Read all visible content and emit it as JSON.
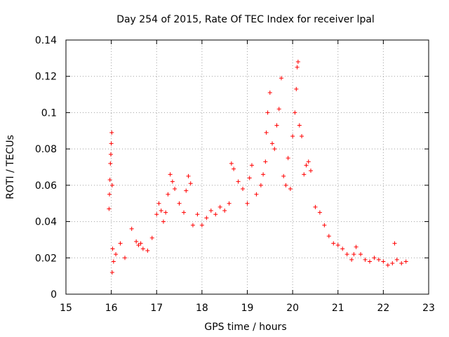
{
  "chart_data": {
    "type": "scatter",
    "title": "Day 254 of 2015, Rate Of TEC Index for receiver lpal",
    "xlabel": "GPS time / hours",
    "ylabel": "ROTI / TECUs",
    "xlim": [
      15,
      23
    ],
    "ylim": [
      0,
      0.14
    ],
    "xticks": [
      15,
      16,
      17,
      18,
      19,
      20,
      21,
      22,
      23
    ],
    "xtick_labels": [
      "15",
      "16",
      "17",
      "18",
      "19",
      "20",
      "21",
      "22",
      "23"
    ],
    "yticks": [
      0,
      0.02,
      0.04,
      0.06,
      0.08,
      0.1,
      0.12,
      0.14
    ],
    "ytick_labels": [
      "0",
      "0.02",
      "0.04",
      "0.06",
      "0.08",
      "0.1",
      "0.12",
      "0.14"
    ],
    "grid": true,
    "marker": "+",
    "color": "#ff0000",
    "series": [
      {
        "name": "ROTI",
        "x": [
          15.95,
          15.96,
          15.97,
          15.98,
          15.99,
          16.0,
          16.01,
          16.02,
          16.03,
          16.02,
          16.05,
          16.1,
          16.2,
          16.3,
          16.45,
          16.55,
          16.6,
          16.65,
          16.7,
          16.8,
          16.9,
          17.0,
          17.05,
          17.1,
          17.15,
          17.2,
          17.25,
          17.3,
          17.35,
          17.4,
          17.5,
          17.6,
          17.65,
          17.7,
          17.75,
          17.8,
          17.9,
          18.0,
          18.1,
          18.2,
          18.3,
          18.4,
          18.5,
          18.6,
          18.65,
          18.7,
          18.8,
          18.9,
          19.0,
          19.05,
          19.1,
          19.2,
          19.3,
          19.35,
          19.4,
          19.42,
          19.45,
          19.5,
          19.55,
          19.6,
          19.65,
          19.7,
          19.75,
          19.8,
          19.85,
          19.9,
          19.95,
          20.0,
          20.05,
          20.08,
          20.1,
          20.12,
          20.15,
          20.2,
          20.25,
          20.3,
          20.35,
          20.4,
          20.5,
          20.6,
          20.7,
          20.8,
          20.9,
          21.0,
          21.1,
          21.2,
          21.3,
          21.35,
          21.4,
          21.5,
          21.6,
          21.7,
          21.8,
          21.9,
          22.0,
          22.1,
          22.2,
          22.25,
          22.3,
          22.4,
          22.5
        ],
        "y": [
          0.047,
          0.055,
          0.063,
          0.072,
          0.077,
          0.083,
          0.089,
          0.06,
          0.025,
          0.012,
          0.018,
          0.022,
          0.028,
          0.02,
          0.036,
          0.029,
          0.027,
          0.028,
          0.025,
          0.024,
          0.031,
          0.044,
          0.05,
          0.046,
          0.04,
          0.045,
          0.055,
          0.066,
          0.062,
          0.058,
          0.05,
          0.045,
          0.057,
          0.065,
          0.061,
          0.038,
          0.044,
          0.038,
          0.042,
          0.046,
          0.044,
          0.048,
          0.046,
          0.05,
          0.072,
          0.069,
          0.062,
          0.058,
          0.05,
          0.064,
          0.071,
          0.055,
          0.06,
          0.066,
          0.073,
          0.089,
          0.1,
          0.111,
          0.083,
          0.08,
          0.093,
          0.102,
          0.119,
          0.065,
          0.06,
          0.075,
          0.058,
          0.087,
          0.1,
          0.113,
          0.125,
          0.128,
          0.093,
          0.087,
          0.066,
          0.071,
          0.073,
          0.068,
          0.048,
          0.045,
          0.038,
          0.032,
          0.028,
          0.027,
          0.025,
          0.022,
          0.019,
          0.022,
          0.026,
          0.022,
          0.019,
          0.018,
          0.02,
          0.019,
          0.018,
          0.016,
          0.017,
          0.028,
          0.019,
          0.017,
          0.018
        ]
      }
    ]
  }
}
